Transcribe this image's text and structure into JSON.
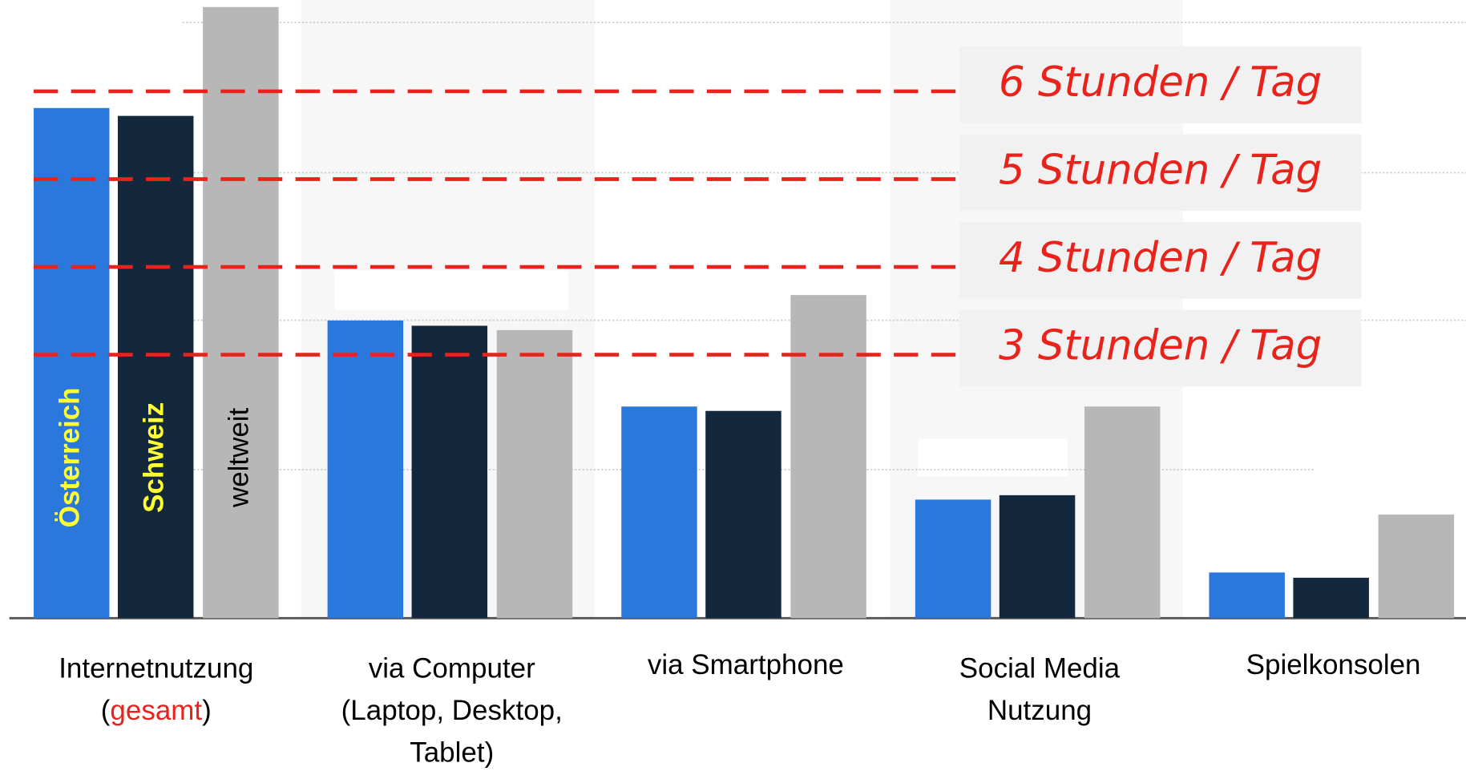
{
  "chart_data": {
    "type": "bar",
    "categories": [
      [
        [
          "Internetnutzung"
        ],
        [
          {
            "text": "("
          },
          {
            "text": "gesamt",
            "color": "#e8231c"
          },
          {
            "text": ")"
          }
        ]
      ],
      [
        [
          "via Computer"
        ],
        [
          "(Laptop, Desktop,"
        ],
        [
          "Tablet)"
        ]
      ],
      [
        [
          "via Smartphone"
        ]
      ],
      [
        [
          "Social Media"
        ],
        [
          "Nutzung"
        ]
      ],
      [
        [
          "Spielkonsolen"
        ]
      ]
    ],
    "series": [
      {
        "name": "Österreich",
        "color": "#2b78dc",
        "label_color": "#ffff33",
        "bold": true,
        "values": [
          5.81,
          3.39,
          2.41,
          1.35,
          0.52
        ]
      },
      {
        "name": "Schweiz",
        "color": "#13283d",
        "label_color": "#ffff33",
        "bold": true,
        "values": [
          5.72,
          3.33,
          2.36,
          1.4,
          0.46
        ]
      },
      {
        "name": "weltweit",
        "color": "#b7b7b7",
        "label_color": "#000000",
        "bold": false,
        "values": [
          6.96,
          3.28,
          3.68,
          2.41,
          1.18
        ]
      }
    ],
    "ylim": [
      0,
      7.04
    ],
    "reference_lines": [
      {
        "value": 6,
        "label": "6 Stunden / Tag"
      },
      {
        "value": 5,
        "label": "5 Stunden / Tag"
      },
      {
        "value": 4,
        "label": "4 Stunden / Tag"
      },
      {
        "value": 3,
        "label": "3 Stunden / Tag"
      }
    ],
    "reference_color": "#e8231c"
  }
}
